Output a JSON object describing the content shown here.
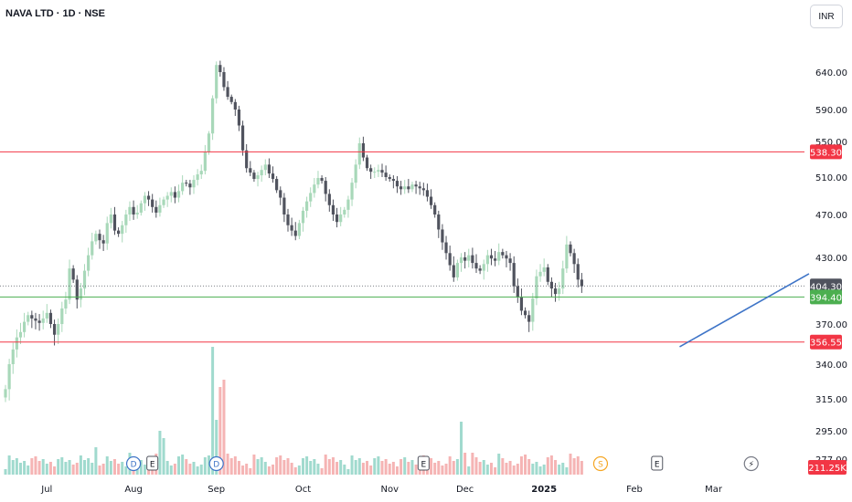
{
  "symbol_title": "NAVA LTD · 1D · NSE",
  "currency_button": "INR",
  "colors": {
    "up": "#a8d8b9",
    "down": "#50535e",
    "vol_up": "#8fd3c6",
    "vol_down": "#f3a7a7",
    "red_line": "#f23645",
    "green_line": "#4caf50",
    "trend_line": "#3e74c7",
    "dotted_line": "#787b86",
    "last_price_box": "#50535e"
  },
  "chart_data": {
    "type": "candlestick",
    "y_axis_ticks": [
      "640.00",
      "590.00",
      "550.00",
      "510.00",
      "470.00",
      "430.00",
      "370.00",
      "340.00",
      "315.00",
      "295.00",
      "277.00"
    ],
    "x_axis_labels": [
      "Jul",
      "Aug",
      "Sep",
      "Oct",
      "Nov",
      "Dec",
      "2025",
      "Feb",
      "Mar"
    ],
    "x_label_index": [
      11,
      34,
      56,
      79,
      102,
      122,
      143,
      167,
      188
    ],
    "price_levels": [
      {
        "label": "538.30",
        "value": 538.3,
        "color": "#f23645",
        "style": "solid"
      },
      {
        "label": "404.30",
        "value": 404.3,
        "color": "#50535e",
        "style": "dotted"
      },
      {
        "label": "394.40",
        "value": 394.4,
        "color": "#4caf50",
        "style": "solid"
      },
      {
        "label": "356.55",
        "value": 356.55,
        "color": "#f23645",
        "style": "solid"
      }
    ],
    "volume_label": "211.25K",
    "event_markers": [
      {
        "text": "D",
        "index": 34,
        "kind": "dividend"
      },
      {
        "text": "E",
        "index": 39,
        "kind": "earnings"
      },
      {
        "text": "D",
        "index": 56,
        "kind": "dividend"
      },
      {
        "text": "E",
        "index": 111,
        "kind": "earnings"
      },
      {
        "text": "S",
        "index": 158,
        "kind": "split"
      },
      {
        "text": "E",
        "index": 173,
        "kind": "earnings"
      },
      {
        "text": "⚡",
        "index": 198,
        "kind": "flash"
      }
    ],
    "trendline": {
      "from": [
        179,
        353
      ],
      "to": [
        208,
        412
      ]
    },
    "series": [
      {
        "name": "price",
        "close": [
          322,
          340,
          351,
          360,
          364,
          372,
          378,
          375,
          373,
          371,
          375,
          380,
          370,
          362,
          370,
          384,
          392,
          420,
          410,
          392,
          402,
          418,
          432,
          445,
          452,
          446,
          443,
          462,
          470,
          455,
          452,
          460,
          470,
          478,
          470,
          472,
          482,
          490,
          486,
          478,
          472,
          480,
          486,
          490,
          494,
          488,
          495,
          504,
          503,
          499,
          507,
          513,
          517,
          538,
          560,
          605,
          650,
          640,
          620,
          607,
          600,
          590,
          570,
          540,
          520,
          515,
          508,
          512,
          518,
          524,
          514,
          508,
          496,
          488,
          470,
          460,
          455,
          450,
          462,
          474,
          484,
          493,
          502,
          509,
          506,
          492,
          480,
          470,
          463,
          470,
          475,
          486,
          504,
          524,
          548,
          532,
          520,
          516,
          516,
          518,
          515,
          510,
          508,
          506,
          500,
          497,
          500,
          497,
          502,
          500,
          498,
          496,
          489,
          480,
          470,
          456,
          444,
          434,
          423,
          412,
          425,
          430,
          427,
          432,
          425,
          420,
          418,
          424,
          432,
          429,
          427,
          435,
          432,
          429,
          425,
          404,
          394,
          382,
          378,
          372,
          393,
          413,
          417,
          421,
          408,
          402,
          397,
          402,
          420,
          442,
          434,
          424,
          410,
          404
        ]
      }
    ]
  }
}
